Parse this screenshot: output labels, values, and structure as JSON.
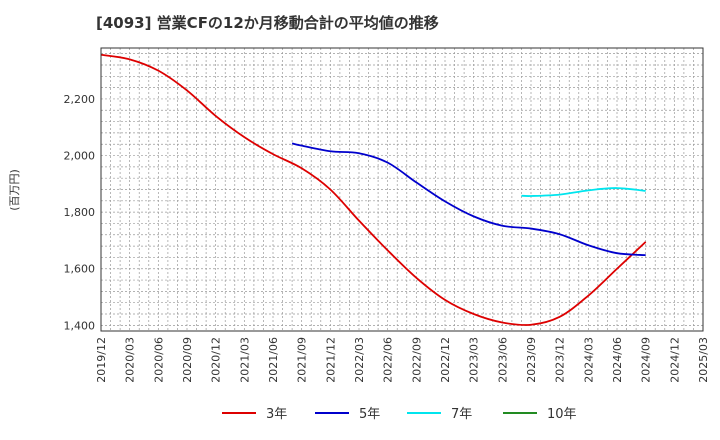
{
  "chart_data": {
    "type": "line",
    "title": "[4093]  営業CFの12か月移動合計の平均値の推移",
    "ylabel": "(百万円)",
    "xlabel": "",
    "ylim": [
      1380,
      2380
    ],
    "yticks": [
      1400,
      1600,
      1800,
      2000,
      2200
    ],
    "ytick_labels": [
      "1,400",
      "1,600",
      "1,800",
      "2,000",
      "2,200"
    ],
    "xlim": [
      "2019-12",
      "2025-03"
    ],
    "xtick_labels": [
      "2019/12",
      "2020/03",
      "2020/06",
      "2020/09",
      "2020/12",
      "2021/03",
      "2021/06",
      "2021/09",
      "2021/12",
      "2022/03",
      "2022/06",
      "2022/09",
      "2022/12",
      "2023/03",
      "2023/06",
      "2023/09",
      "2023/12",
      "2024/03",
      "2024/06",
      "2024/09",
      "2024/12",
      "2025/03"
    ],
    "grid": true,
    "legend_position": "bottom",
    "series": [
      {
        "name": "3年",
        "color": "#dd0000",
        "points": [
          [
            "2019-12",
            2356
          ],
          [
            "2020-03",
            2340
          ],
          [
            "2020-06",
            2300
          ],
          [
            "2020-09",
            2230
          ],
          [
            "2020-12",
            2140
          ],
          [
            "2021-03",
            2065
          ],
          [
            "2021-06",
            2005
          ],
          [
            "2021-09",
            1955
          ],
          [
            "2021-12",
            1880
          ],
          [
            "2022-03",
            1770
          ],
          [
            "2022-06",
            1665
          ],
          [
            "2022-09",
            1568
          ],
          [
            "2022-12",
            1490
          ],
          [
            "2023-03",
            1440
          ],
          [
            "2023-06",
            1410
          ],
          [
            "2023-09",
            1402
          ],
          [
            "2023-12",
            1430
          ],
          [
            "2024-03",
            1505
          ],
          [
            "2024-06",
            1600
          ],
          [
            "2024-09",
            1695
          ]
        ]
      },
      {
        "name": "5年",
        "color": "#0000cc",
        "points": [
          [
            "2021-08",
            2043
          ],
          [
            "2021-09",
            2035
          ],
          [
            "2021-12",
            2015
          ],
          [
            "2022-03",
            2008
          ],
          [
            "2022-06",
            1975
          ],
          [
            "2022-09",
            1905
          ],
          [
            "2022-12",
            1838
          ],
          [
            "2023-03",
            1785
          ],
          [
            "2023-06",
            1752
          ],
          [
            "2023-09",
            1742
          ],
          [
            "2023-12",
            1722
          ],
          [
            "2024-03",
            1683
          ],
          [
            "2024-06",
            1655
          ],
          [
            "2024-09",
            1648
          ]
        ]
      },
      {
        "name": "7年",
        "color": "#00e5ee",
        "points": [
          [
            "2023-08",
            1858
          ],
          [
            "2023-09",
            1857
          ],
          [
            "2023-12",
            1862
          ],
          [
            "2024-03",
            1877
          ],
          [
            "2024-06",
            1885
          ],
          [
            "2024-09",
            1875
          ]
        ]
      },
      {
        "name": "10年",
        "color": "#228b22",
        "points": []
      }
    ]
  }
}
